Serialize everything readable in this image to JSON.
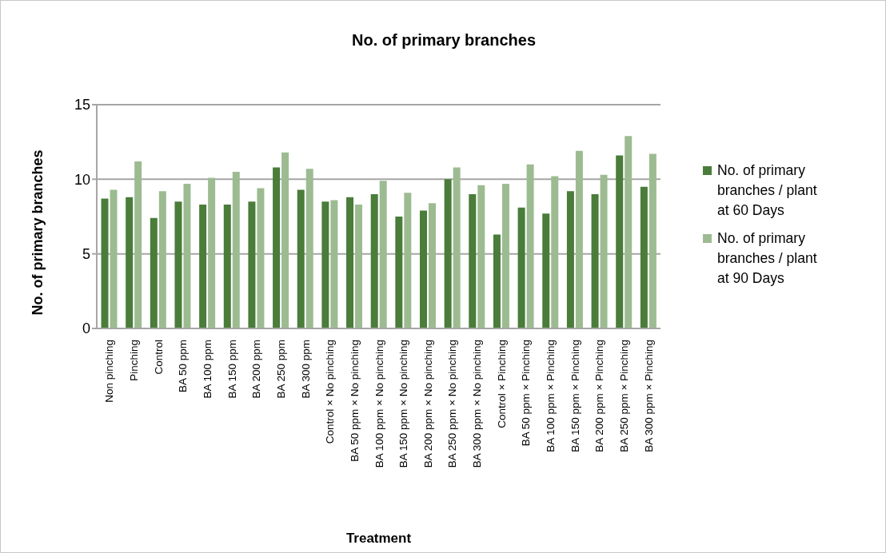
{
  "chart_data": {
    "type": "bar",
    "title": "No. of primary branches",
    "xlabel": "Treatment",
    "ylabel": "No. of primary branches",
    "categories": [
      "Non pinching",
      "Pinching",
      "Control",
      "BA 50 ppm",
      "BA 100 ppm",
      "BA 150 ppm",
      "BA 200 ppm",
      "BA 250 ppm",
      "BA 300 ppm",
      "Control × No pinching",
      "BA 50 ppm × No pinching",
      "BA 100 ppm × No pinching",
      "BA 150 ppm × No pinching",
      "BA 200 ppm × No pinching",
      "BA 250 ppm × No pinching",
      "BA 300 ppm × No pinching",
      "Control × Pinching",
      "BA 50 ppm × Pinching",
      "BA 100 ppm × Pinching",
      "BA 150 ppm × Pinching",
      "BA 200 ppm × Pinching",
      "BA 250 ppm × Pinching",
      "BA 300 ppm × Pinching"
    ],
    "series": [
      {
        "name": "No. of primary branches / plant at 60 Days",
        "color": "#4a7c3a",
        "values": [
          8.7,
          8.8,
          7.4,
          8.5,
          8.3,
          8.3,
          8.5,
          10.8,
          9.3,
          8.5,
          8.8,
          9.0,
          7.5,
          7.9,
          10.0,
          9.0,
          6.3,
          8.1,
          7.7,
          9.2,
          9.0,
          11.6,
          9.5
        ]
      },
      {
        "name": "No. of primary branches / plant at 90 Days",
        "color": "#9dbb91",
        "values": [
          9.3,
          11.2,
          9.2,
          9.7,
          10.1,
          10.5,
          9.4,
          11.8,
          10.7,
          8.6,
          8.3,
          9.9,
          9.1,
          8.4,
          10.8,
          9.6,
          9.7,
          11.0,
          10.2,
          11.9,
          10.3,
          12.9,
          11.7
        ]
      }
    ],
    "ylim": [
      0,
      15
    ],
    "yticks": [
      0,
      5,
      10,
      15
    ],
    "grid": "y",
    "legend": "right"
  }
}
